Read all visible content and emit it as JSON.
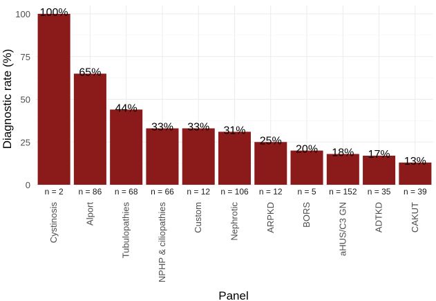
{
  "chart_data": {
    "type": "bar",
    "title": "",
    "xlabel": "Panel",
    "ylabel": "Diagnostic rate (%)",
    "ylim": [
      0,
      100
    ],
    "yticks": [
      0,
      25,
      50,
      75,
      100
    ],
    "grid": true,
    "bar_color": "#8b1a1a",
    "categories": [
      "Cystinosis",
      "Alport",
      "Tubulopathies",
      "NPHP & ciliopathies",
      "Custom",
      "Nephrotic",
      "ARPKD",
      "BORS",
      "aHUS/C3 GN",
      "ADTKD",
      "CAKUT"
    ],
    "values": [
      100,
      65,
      44,
      33,
      33,
      31,
      25,
      20,
      18,
      17,
      13
    ],
    "value_labels": [
      "100%",
      "65%",
      "44%",
      "33%",
      "33%",
      "31%",
      "25%",
      "20%",
      "18%",
      "17%",
      "13%"
    ],
    "n_labels": [
      "n =  2",
      "n =  86",
      "n =  68",
      "n =  66",
      "n =  12",
      "n =  106",
      "n =  12",
      "n =  5",
      "n =  152",
      "n =  35",
      "n =  39"
    ]
  }
}
